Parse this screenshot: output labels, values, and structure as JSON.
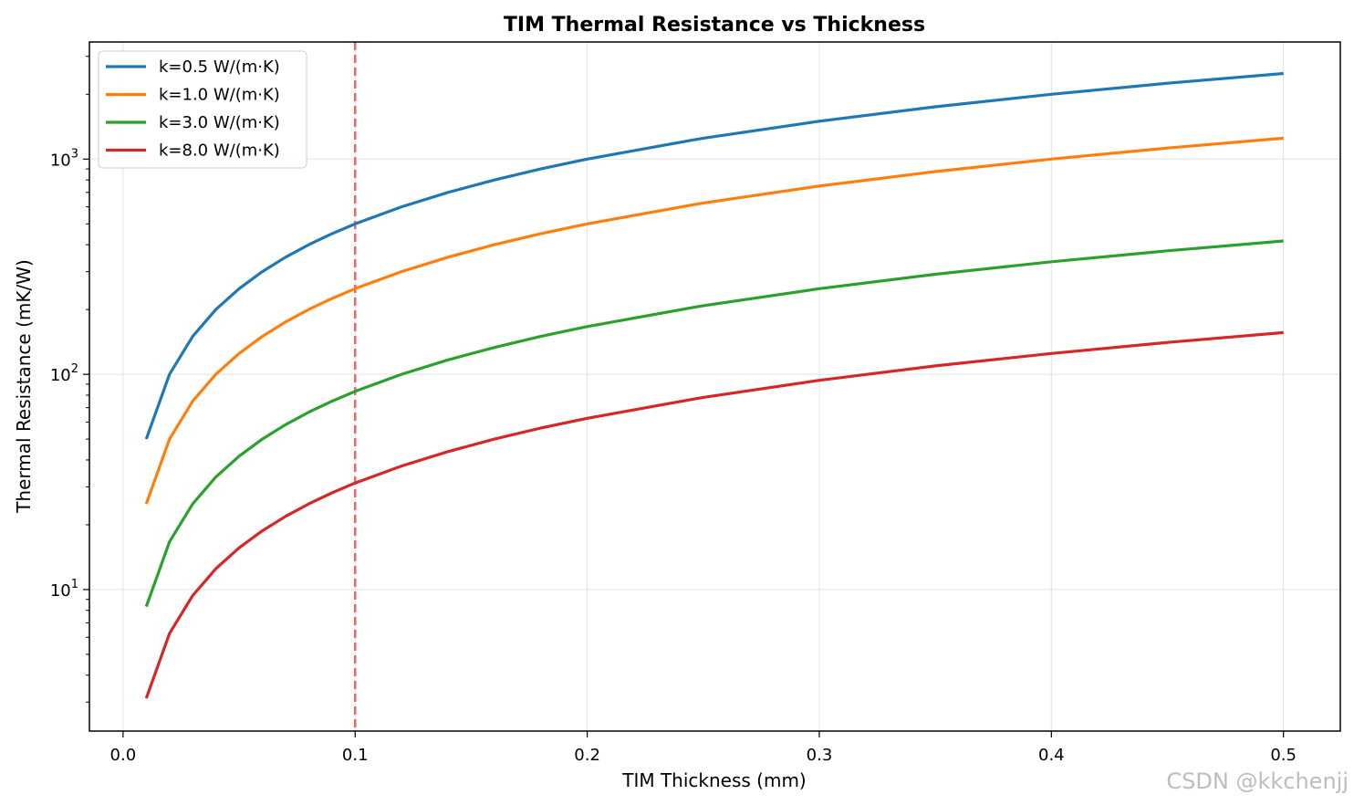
{
  "chart_data": {
    "type": "line",
    "title": "TIM Thermal Resistance vs Thickness",
    "xlabel": "TIM Thickness (mm)",
    "ylabel": "Thermal Resistance (mK/W)",
    "xlim": [
      -0.0145,
      0.5245
    ],
    "ylim": [
      2.2,
      3500
    ],
    "yscale": "log",
    "grid": true,
    "legend_position": "upper-left",
    "x_ticks": [
      0.0,
      0.1,
      0.2,
      0.3,
      0.4,
      0.5
    ],
    "x_tick_labels": [
      "0.0",
      "0.1",
      "0.2",
      "0.3",
      "0.4",
      "0.5"
    ],
    "y_major_ticks": [
      {
        "value": 10,
        "base": "10",
        "exp": "1"
      },
      {
        "value": 100,
        "base": "10",
        "exp": "2"
      },
      {
        "value": 1000,
        "base": "10",
        "exp": "3"
      }
    ],
    "x": [
      0.01,
      0.02,
      0.03,
      0.04,
      0.05,
      0.06,
      0.07,
      0.08,
      0.09,
      0.1,
      0.12,
      0.14,
      0.16,
      0.18,
      0.2,
      0.25,
      0.3,
      0.35,
      0.4,
      0.45,
      0.5
    ],
    "series": [
      {
        "name": "k=0.5 W/(m·K)",
        "color": "#1f77b4",
        "k": 0.5,
        "values": [
          50,
          100,
          150,
          200,
          250,
          300,
          350,
          400,
          450,
          500,
          600,
          700,
          800,
          900,
          1000,
          1250,
          1500,
          1750,
          2000,
          2250,
          2500
        ]
      },
      {
        "name": "k=1.0 W/(m·K)",
        "color": "#ff7f0e",
        "k": 1.0,
        "values": [
          25,
          50,
          75,
          100,
          125,
          150,
          175,
          200,
          225,
          250,
          300,
          350,
          400,
          450,
          500,
          625,
          750,
          875,
          1000,
          1125,
          1250
        ]
      },
      {
        "name": "k=3.0 W/(m·K)",
        "color": "#2ca02c",
        "k": 3.0,
        "values": [
          8.33,
          16.67,
          25,
          33.33,
          41.67,
          50,
          58.33,
          66.67,
          75,
          83.33,
          100,
          116.67,
          133.33,
          150,
          166.67,
          208.33,
          250,
          291.67,
          333.33,
          375,
          416.67
        ]
      },
      {
        "name": "k=8.0 W/(m·K)",
        "color": "#d62728",
        "k": 8.0,
        "values": [
          3.125,
          6.25,
          9.375,
          12.5,
          15.625,
          18.75,
          21.875,
          25,
          28.125,
          31.25,
          37.5,
          43.75,
          50,
          56.25,
          62.5,
          78.125,
          93.75,
          109.375,
          125,
          140.625,
          156.25
        ]
      }
    ],
    "reference_line": {
      "x": 0.1,
      "color": "#ee6666",
      "style": "dashed"
    },
    "watermark": "CSDN @kkchenjj"
  }
}
